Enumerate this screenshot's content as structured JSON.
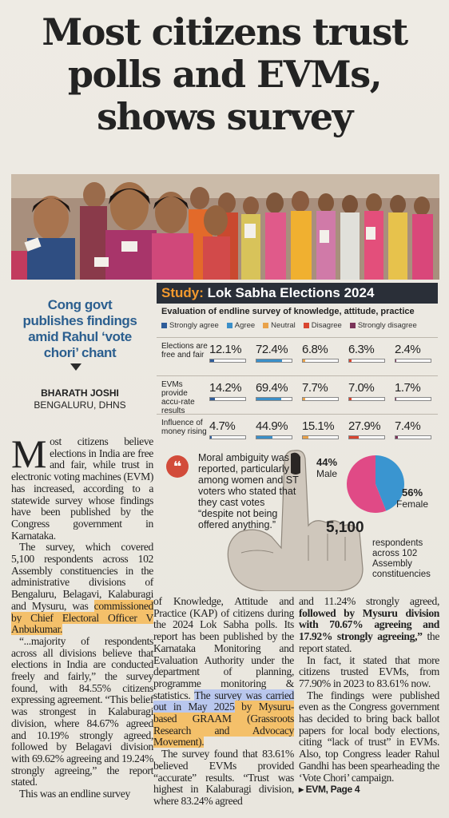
{
  "headline": {
    "line1": "Most citizens trust",
    "line2": "polls and EVMs,",
    "line3": "shows survey"
  },
  "sidebar": {
    "kicker": "Cong govt publishes findings amid Rahul ‘vote chori’ chant",
    "author": "BHARATH JOSHI",
    "dateline": "BENGALURU, DHNS"
  },
  "infographic": {
    "title_prefix": "Study:",
    "title_rest": " Lok Sabha Elections 2024",
    "subtitle": "Evaluation of endline survey of knowledge, attitude, practice",
    "legend": [
      {
        "label": "Strongly agree",
        "color": "#2f5d9a"
      },
      {
        "label": "Agree",
        "color": "#3b8fc8"
      },
      {
        "label": "Neutral",
        "color": "#e9a24a"
      },
      {
        "label": "Disagree",
        "color": "#d9452f"
      },
      {
        "label": "Strongly disagree",
        "color": "#7a3358"
      }
    ],
    "rows": [
      {
        "label": "Elections are free and fair",
        "values": [
          "12.1%",
          "72.4%",
          "6.8%",
          "6.3%",
          "2.4%"
        ],
        "fractions": [
          0.121,
          0.724,
          0.068,
          0.063,
          0.024
        ]
      },
      {
        "label": "EVMs provide accu-rate results",
        "values": [
          "14.2%",
          "69.4%",
          "7.7%",
          "7.0%",
          "1.7%"
        ],
        "fractions": [
          0.142,
          0.694,
          0.077,
          0.07,
          0.017
        ]
      },
      {
        "label": "Influence of money rising",
        "values": [
          "4.7%",
          "44.9%",
          "15.1%",
          "27.9%",
          "7.4%"
        ],
        "fractions": [
          0.047,
          0.449,
          0.151,
          0.279,
          0.074
        ]
      }
    ],
    "quote": "Moral ambiguity was reported, particularly among women and ST voters who stated that they cast votes “despite not being offered anything.”",
    "male_pct": "44%",
    "male_label": "Male",
    "female_pct": "56%",
    "female_label": "Female",
    "male_color": "#3a95d0",
    "female_color": "#e04a86",
    "respondents": "5,100",
    "respondents_text": "respondents across 102 Assembly constituencies"
  },
  "chart_data": {
    "type": "pie",
    "categories": [
      "Male",
      "Female"
    ],
    "values": [
      44,
      56
    ]
  },
  "body": {
    "c1_p1_rest": "ost citizens believe elections in India are free and fair, while trust in electronic voting machines (EVM) has increased, according to a statewide survey whose findings have been published by the Congress government in Karnataka.",
    "c1_p1_drop": "M",
    "c1_p2a": "The survey, which covered 5,100 respondents across 102 Assembly constituencies in the administrative divisions of Bengaluru, Belagavi, Kalaburagi and Mysuru, was ",
    "c1_p2b": "commissioned by Chief Electoral Officer V Anbukumar.",
    "c1_p3": "“...majority of respondents across all divisions believe that elections in India are conducted freely and fairly,” the survey found, with 84.55% citizens expressing agreement. “This belief was strongest in Kalaburagi division, where 84.67% agreed and 10.19% strongly agreed, followed by Belagavi division with 69.62% agreeing and 19.24% strongly agreeing,” the report stated.",
    "c1_p4": "This was an endline survey",
    "c2_p1a": "of Knowledge, Attitude and Practice (KAP) of citizens during the 2024 Lok Sabha polls. Its report has been published by the Karnataka Monitoring and Evaluation Authority under the department of planning, programme monitoring & statistics. ",
    "c2_p1b": "The survey was carried out in May 2025",
    "c2_p1c": " by Mysuru-based GRAAM (Grassroots Research and Advocacy Movement).",
    "c2_p2": "The survey found that 83.61% believed EVMs provided “accurate” results. “Trust was highest in Kalaburagi division, where 83.24% agreed",
    "c3_p1a": "and 11.24% strongly agreed, ",
    "c3_p1b": "followed by Mysuru division with 70.67% agreeing and 17.92% strongly agreeing,”",
    "c3_p1c": " the report stated.",
    "c3_p2": "In fact, it stated that more citizens trusted EVMs, from 77.90% in 2023 to 83.61% now.",
    "c3_p3": "The findings were published even as the Congress government has decided to bring back ballot papers for local body elections, citing “lack of trust” in EVMs. Also, top Congress leader Rahul Gandhi has been spearheading the ‘Vote Chori’ campaign.",
    "jump": "▸ EVM, Page 4"
  }
}
